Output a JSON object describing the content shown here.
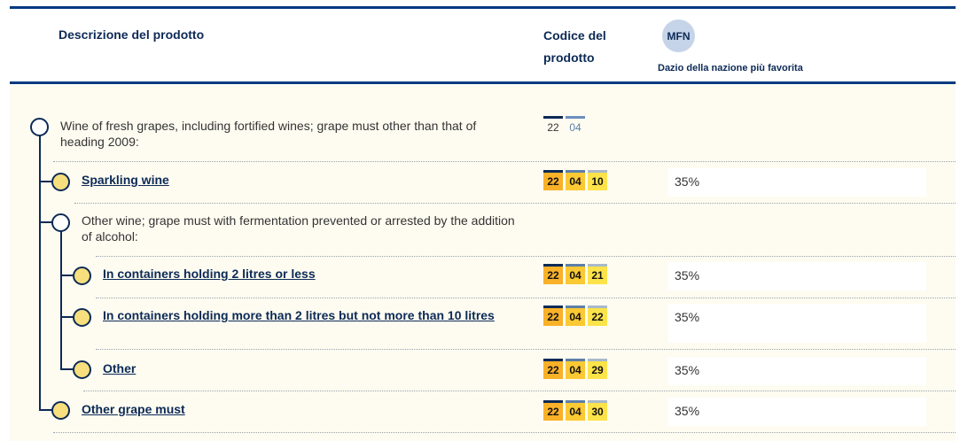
{
  "header": {
    "description_label": "Descrizione del prodotto",
    "code_label_line1": "Codice del",
    "code_label_line2": "prodotto",
    "mfn_badge": "MFN",
    "mfn_subtitle": "Dazio della nazione più favorita"
  },
  "rows": [
    {
      "description": "Wine of fresh grapes, including fortified wines; grape must other than that of heading 2009:",
      "code": [
        "22",
        "04"
      ],
      "rate": ""
    },
    {
      "description": "Sparkling wine",
      "code": [
        "22",
        "04",
        "10"
      ],
      "rate": "35%"
    },
    {
      "description": "Other wine; grape must with fermentation prevented or arrested by the addition of alcohol:",
      "code": [],
      "rate": ""
    },
    {
      "description": "In containers holding 2 litres or less",
      "code": [
        "22",
        "04",
        "21"
      ],
      "rate": "35%"
    },
    {
      "description": "In containers holding more than 2 litres but not more than 10 litres",
      "code": [
        "22",
        "04",
        "22"
      ],
      "rate": "35%"
    },
    {
      "description": "Other",
      "code": [
        "22",
        "04",
        "29"
      ],
      "rate": "35%"
    },
    {
      "description": "Other grape must",
      "code": [
        "22",
        "04",
        "30"
      ],
      "rate": "35%"
    }
  ],
  "colors": {
    "navy": "#0c2a56",
    "body_background": "#fefcf1",
    "leaf_node": "#f6df7c"
  }
}
